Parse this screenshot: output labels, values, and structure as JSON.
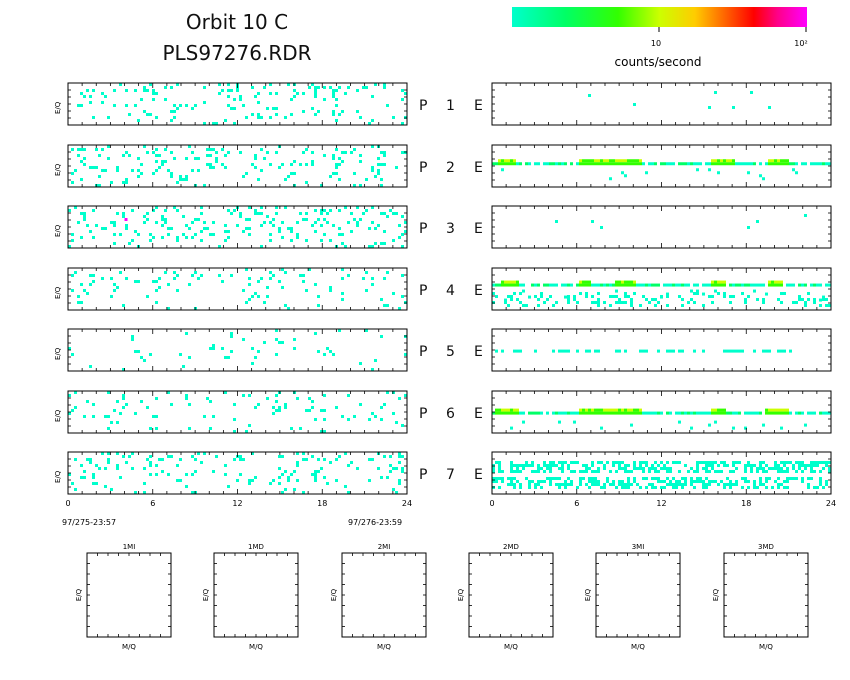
{
  "title": {
    "line1": "Orbit 10 C",
    "line2": "PLS97276.RDR"
  },
  "colorbar": {
    "label": "counts/second",
    "tick_10": "10",
    "tick_100": "10²",
    "colors": [
      "#00ffcc",
      "#00ff66",
      "#33ff00",
      "#ccff00",
      "#ffcc00",
      "#ff6600",
      "#ff0000",
      "#ff0088",
      "#ff00ff"
    ],
    "range": [
      1,
      100
    ],
    "scale": "log"
  },
  "panel_y_label": "E/Q",
  "mass_y_label": "E/Q",
  "mass_x_label": "M/Q",
  "time_start": "97/275-23:57",
  "time_end": "97/276-23:59",
  "rows": [
    {
      "p": "P",
      "n": "1",
      "e": "E"
    },
    {
      "p": "P",
      "n": "2",
      "e": "E"
    },
    {
      "p": "P",
      "n": "3",
      "e": "E"
    },
    {
      "p": "P",
      "n": "4",
      "e": "E"
    },
    {
      "p": "P",
      "n": "5",
      "e": "E"
    },
    {
      "p": "P",
      "n": "6",
      "e": "E"
    },
    {
      "p": "P",
      "n": "7",
      "e": "E"
    }
  ],
  "x_ticks": [
    "0",
    "6",
    "12",
    "18",
    "24"
  ],
  "mass_panels": [
    "1MI",
    "1MD",
    "2MI",
    "2MD",
    "3MI",
    "3MD"
  ],
  "chart_data": {
    "type": "heatmap",
    "x_range": [
      0,
      24
    ],
    "x_ticks": [
      0,
      6,
      12,
      18,
      24
    ],
    "x_units": "hours",
    "color_scale": "log",
    "color_range": [
      1,
      100
    ],
    "left_panels": [
      {
        "row": 1,
        "density": 0.16,
        "color": "#00ffcc"
      },
      {
        "row": 2,
        "density": 0.2,
        "color": "#00ffcc"
      },
      {
        "row": 3,
        "density": 0.2,
        "color": "#00ffcc",
        "hot_pixel": {
          "x": 4.0,
          "color": "#ff00ff"
        }
      },
      {
        "row": 4,
        "density": 0.1,
        "color": "#00ffcc"
      },
      {
        "row": 5,
        "density": 0.05,
        "color": "#00ffcc"
      },
      {
        "row": 6,
        "density": 0.1,
        "color": "#00ffcc"
      },
      {
        "row": 7,
        "density": 0.16,
        "color": "#00ffcc"
      }
    ],
    "right_panels": [
      {
        "row": 1,
        "sparse": true
      },
      {
        "row": 2,
        "band": true,
        "band_level": 0.22,
        "bright_segments": [
          [
            0.3,
            1.5
          ],
          [
            6,
            10.5
          ],
          [
            15.5,
            17.2
          ],
          [
            19.5,
            21
          ]
        ]
      },
      {
        "row": 3,
        "sparse": true
      },
      {
        "row": 4,
        "band": true,
        "band_level": 0.18,
        "bright_segments": [
          [
            0.5,
            1.8
          ],
          [
            6,
            7
          ],
          [
            8.5,
            10
          ],
          [
            15.5,
            16.5
          ],
          [
            19.5,
            20.5
          ]
        ],
        "lower_noise": true
      },
      {
        "row": 5,
        "band": true,
        "band_level": 0.3,
        "faint": true
      },
      {
        "row": 6,
        "band": true,
        "band_level": 0.3,
        "bright_segments": [
          [
            0.2,
            1.8
          ],
          [
            6,
            10.5
          ],
          [
            15.5,
            16.5
          ],
          [
            19.3,
            21
          ]
        ]
      },
      {
        "row": 7,
        "double_band": true
      }
    ]
  }
}
